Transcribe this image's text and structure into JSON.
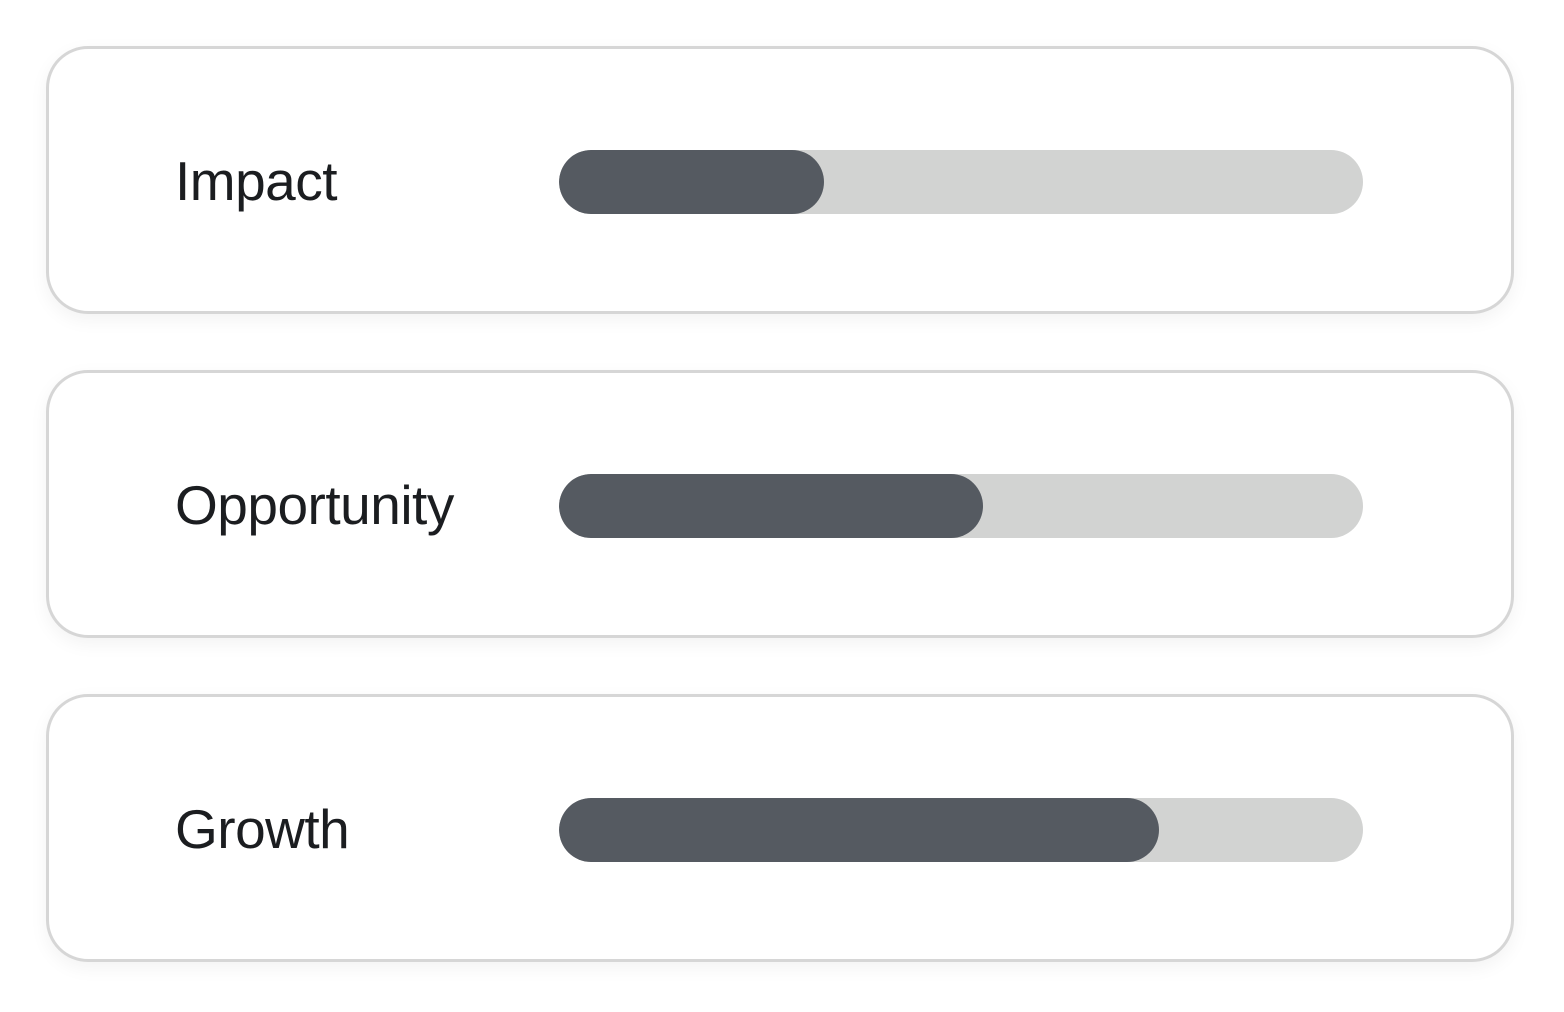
{
  "metrics": [
    {
      "label": "Impact",
      "value": 0.33
    },
    {
      "label": "Opportunity",
      "value": 0.527
    },
    {
      "label": "Growth",
      "value": 0.746
    }
  ],
  "colors": {
    "fill": "#555a61",
    "track": "#d2d3d2",
    "card_border": "#d6d6d6",
    "text": "#1b1d20"
  }
}
